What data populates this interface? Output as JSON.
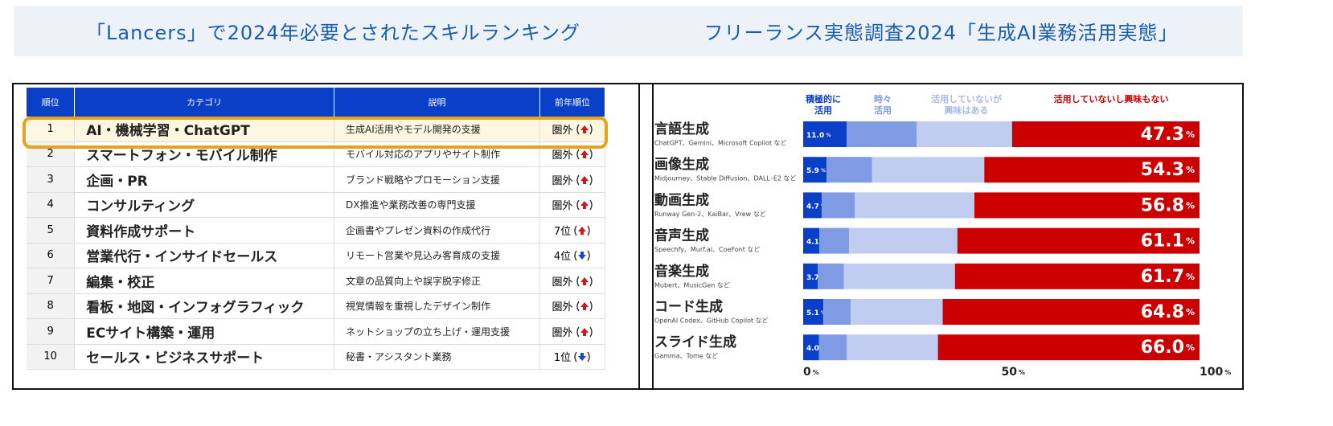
{
  "ranking": {
    "title": "「Lancers」で2024年必要とされたスキルランキング",
    "headers": [
      "順位",
      "カテゴリ",
      "説明",
      "前年順位"
    ],
    "rows": [
      {
        "rank": "1",
        "category": "AI・機械学習・ChatGPT",
        "description": "生成AI活用やモデル開発の支援",
        "prev": "圏外",
        "trend": "up"
      },
      {
        "rank": "2",
        "category": "スマートフォン・モバイル制作",
        "description": "モバイル対応のアプリやサイト制作",
        "prev": "圏外",
        "trend": "up"
      },
      {
        "rank": "3",
        "category": "企画・PR",
        "description": "ブランド戦略やプロモーション支援",
        "prev": "圏外",
        "trend": "up"
      },
      {
        "rank": "4",
        "category": "コンサルティング",
        "description": "DX推進や業務改善の専門支援",
        "prev": "圏外",
        "trend": "up"
      },
      {
        "rank": "5",
        "category": "資料作成サポート",
        "description": "企画書やプレゼン資料の作成代行",
        "prev": "7位",
        "trend": "up"
      },
      {
        "rank": "6",
        "category": "営業代行・インサイドセールス",
        "description": "リモート営業や見込み客育成の支援",
        "prev": "4位",
        "trend": "down"
      },
      {
        "rank": "7",
        "category": "編集・校正",
        "description": "文章の品質向上や誤字脱字修正",
        "prev": "圏外",
        "trend": "up"
      },
      {
        "rank": "8",
        "category": "看板・地図・インフォグラフィック",
        "description": "視覚情報を重視したデザイン制作",
        "prev": "圏外",
        "trend": "up"
      },
      {
        "rank": "9",
        "category": "ECサイト構築・運用",
        "description": "ネットショップの立ち上げ・運用支援",
        "prev": "圏外",
        "trend": "up"
      },
      {
        "rank": "10",
        "category": "セールス・ビジネスサポート",
        "description": "秘書・アシスタント業務",
        "prev": "1位",
        "trend": "down"
      }
    ],
    "highlight_row": 0
  },
  "chart_data": {
    "type": "stacked_barh",
    "title": "フリーランス実態調査2024「生成AI業務活用実態」",
    "categories": [
      "言語生成",
      "画像生成",
      "動画生成",
      "音声生成",
      "音楽生成",
      "コード生成",
      "スライド生成"
    ],
    "category_notes": [
      "ChatGPT、Gemini、Microsoft Copilot など",
      "Midjourney、Stable Diffusion、DALL･E2 など",
      "Runway Gen-2、KaiBar、Vrew など",
      "Speechfy、Murf.ai、CoeFont など",
      "Mubert、MusicGen など",
      "OpenAI Codex、GitHub Copilot など",
      "Gamma、Tome など"
    ],
    "series": [
      {
        "name": "積極的に\n活用",
        "color": "#0a3fc8",
        "values": [
          11.0,
          5.9,
          4.7,
          4.1,
          3.7,
          5.1,
          4.0
        ],
        "value_labels": [
          "11.0%",
          "5.9%",
          "4.7%",
          "4.1%",
          "3.7%",
          "5.1%",
          "4.0%"
        ]
      },
      {
        "name": "時々\n活用",
        "color": "#7f9be3",
        "values": [
          17.6,
          11.5,
          8.3,
          7.5,
          6.6,
          6.9,
          7.0
        ]
      },
      {
        "name": "活用していないが\n興味はある",
        "color": "#c0cdf1",
        "legend_color": "#a9b8e2",
        "values": [
          24.1,
          28.3,
          30.2,
          27.3,
          28.0,
          23.2,
          23.0
        ]
      },
      {
        "name": "活用していないし興味もない",
        "color": "#cc0000",
        "values": [
          47.3,
          54.3,
          56.8,
          61.1,
          61.7,
          64.8,
          66.0
        ],
        "value_labels": [
          "47.3%",
          "54.3%",
          "56.8%",
          "61.1%",
          "61.7%",
          "64.8%",
          "66.0%"
        ]
      }
    ],
    "xlim": [
      0,
      100
    ],
    "xticks": [
      {
        "value": 0,
        "label": "0%"
      },
      {
        "value": 50,
        "label": "50%"
      },
      {
        "value": 100,
        "label": "100%"
      }
    ]
  }
}
